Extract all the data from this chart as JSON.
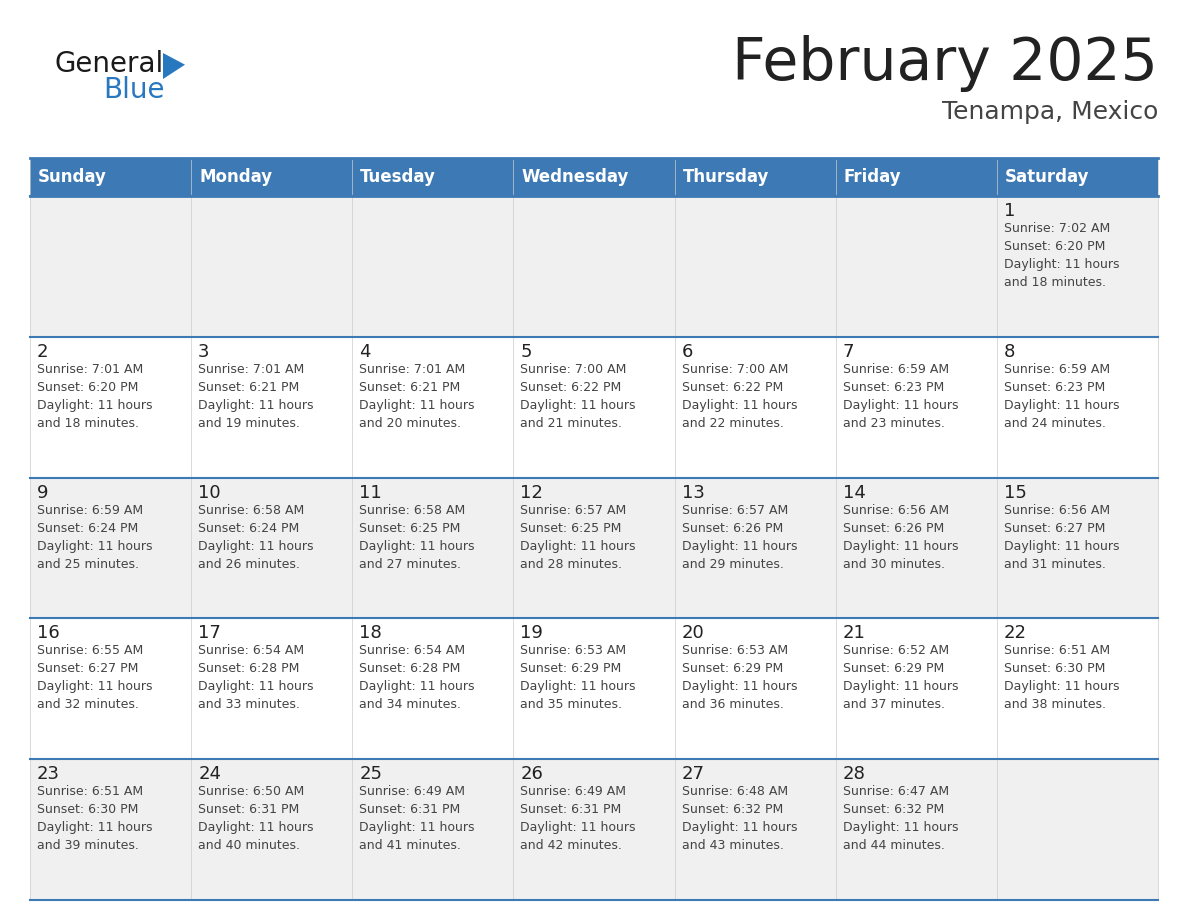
{
  "title": "February 2025",
  "subtitle": "Tenampa, Mexico",
  "header_bg": "#3d7ab5",
  "header_text_color": "#ffffff",
  "day_names": [
    "Sunday",
    "Monday",
    "Tuesday",
    "Wednesday",
    "Thursday",
    "Friday",
    "Saturday"
  ],
  "row_bg_light": "#f0f0f0",
  "row_bg_white": "#ffffff",
  "cell_border_color": "#3d7ab5",
  "day_num_color": "#222222",
  "info_text_color": "#444444",
  "logo_general_color": "#1a1a1a",
  "logo_blue_color": "#2878c0",
  "logo_triangle_color": "#2878c0",
  "calendar": [
    [
      null,
      null,
      null,
      null,
      null,
      null,
      {
        "day": 1,
        "sunrise": "7:02 AM",
        "sunset": "6:20 PM",
        "daylight": "11 hours and 18 minutes"
      }
    ],
    [
      {
        "day": 2,
        "sunrise": "7:01 AM",
        "sunset": "6:20 PM",
        "daylight": "11 hours and 18 minutes"
      },
      {
        "day": 3,
        "sunrise": "7:01 AM",
        "sunset": "6:21 PM",
        "daylight": "11 hours and 19 minutes"
      },
      {
        "day": 4,
        "sunrise": "7:01 AM",
        "sunset": "6:21 PM",
        "daylight": "11 hours and 20 minutes"
      },
      {
        "day": 5,
        "sunrise": "7:00 AM",
        "sunset": "6:22 PM",
        "daylight": "11 hours and 21 minutes"
      },
      {
        "day": 6,
        "sunrise": "7:00 AM",
        "sunset": "6:22 PM",
        "daylight": "11 hours and 22 minutes"
      },
      {
        "day": 7,
        "sunrise": "6:59 AM",
        "sunset": "6:23 PM",
        "daylight": "11 hours and 23 minutes"
      },
      {
        "day": 8,
        "sunrise": "6:59 AM",
        "sunset": "6:23 PM",
        "daylight": "11 hours and 24 minutes"
      }
    ],
    [
      {
        "day": 9,
        "sunrise": "6:59 AM",
        "sunset": "6:24 PM",
        "daylight": "11 hours and 25 minutes"
      },
      {
        "day": 10,
        "sunrise": "6:58 AM",
        "sunset": "6:24 PM",
        "daylight": "11 hours and 26 minutes"
      },
      {
        "day": 11,
        "sunrise": "6:58 AM",
        "sunset": "6:25 PM",
        "daylight": "11 hours and 27 minutes"
      },
      {
        "day": 12,
        "sunrise": "6:57 AM",
        "sunset": "6:25 PM",
        "daylight": "11 hours and 28 minutes"
      },
      {
        "day": 13,
        "sunrise": "6:57 AM",
        "sunset": "6:26 PM",
        "daylight": "11 hours and 29 minutes"
      },
      {
        "day": 14,
        "sunrise": "6:56 AM",
        "sunset": "6:26 PM",
        "daylight": "11 hours and 30 minutes"
      },
      {
        "day": 15,
        "sunrise": "6:56 AM",
        "sunset": "6:27 PM",
        "daylight": "11 hours and 31 minutes"
      }
    ],
    [
      {
        "day": 16,
        "sunrise": "6:55 AM",
        "sunset": "6:27 PM",
        "daylight": "11 hours and 32 minutes"
      },
      {
        "day": 17,
        "sunrise": "6:54 AM",
        "sunset": "6:28 PM",
        "daylight": "11 hours and 33 minutes"
      },
      {
        "day": 18,
        "sunrise": "6:54 AM",
        "sunset": "6:28 PM",
        "daylight": "11 hours and 34 minutes"
      },
      {
        "day": 19,
        "sunrise": "6:53 AM",
        "sunset": "6:29 PM",
        "daylight": "11 hours and 35 minutes"
      },
      {
        "day": 20,
        "sunrise": "6:53 AM",
        "sunset": "6:29 PM",
        "daylight": "11 hours and 36 minutes"
      },
      {
        "day": 21,
        "sunrise": "6:52 AM",
        "sunset": "6:29 PM",
        "daylight": "11 hours and 37 minutes"
      },
      {
        "day": 22,
        "sunrise": "6:51 AM",
        "sunset": "6:30 PM",
        "daylight": "11 hours and 38 minutes"
      }
    ],
    [
      {
        "day": 23,
        "sunrise": "6:51 AM",
        "sunset": "6:30 PM",
        "daylight": "11 hours and 39 minutes"
      },
      {
        "day": 24,
        "sunrise": "6:50 AM",
        "sunset": "6:31 PM",
        "daylight": "11 hours and 40 minutes"
      },
      {
        "day": 25,
        "sunrise": "6:49 AM",
        "sunset": "6:31 PM",
        "daylight": "11 hours and 41 minutes"
      },
      {
        "day": 26,
        "sunrise": "6:49 AM",
        "sunset": "6:31 PM",
        "daylight": "11 hours and 42 minutes"
      },
      {
        "day": 27,
        "sunrise": "6:48 AM",
        "sunset": "6:32 PM",
        "daylight": "11 hours and 43 minutes"
      },
      {
        "day": 28,
        "sunrise": "6:47 AM",
        "sunset": "6:32 PM",
        "daylight": "11 hours and 44 minutes"
      },
      null
    ]
  ]
}
